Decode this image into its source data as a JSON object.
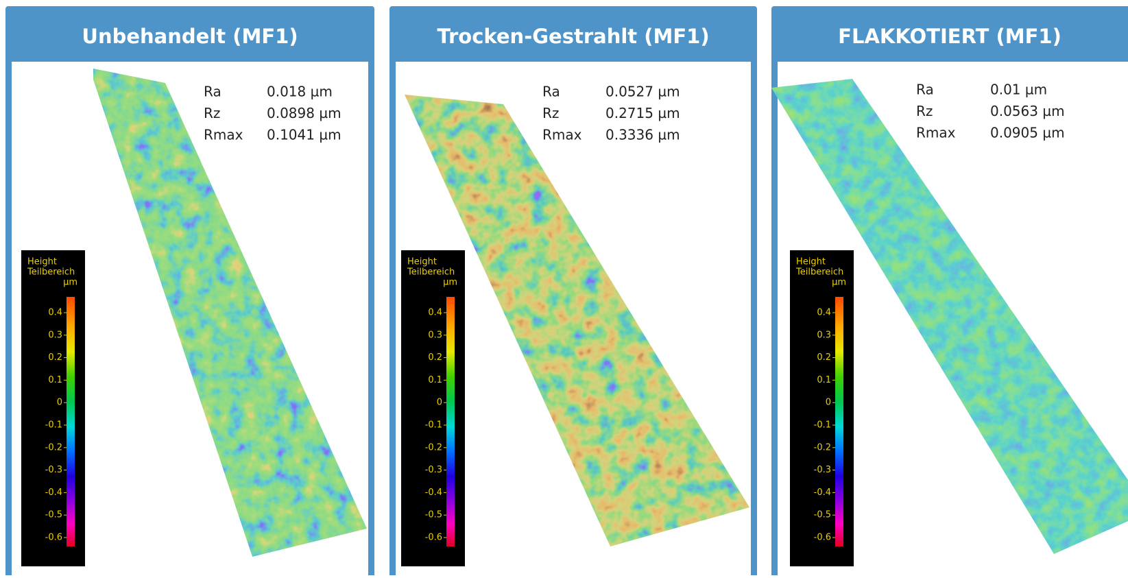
{
  "panels": [
    {
      "title": "Unbehandelt (MF1)",
      "stats": [
        {
          "label": "Ra",
          "value": "0.018 µm"
        },
        {
          "label": "Rz",
          "value": "0.0898 µm"
        },
        {
          "label": "Rmax",
          "value": "0.1041 µm"
        }
      ]
    },
    {
      "title": "Trocken-Gestrahlt (MF1)",
      "stats": [
        {
          "label": "Ra",
          "value": "0.0527 µm"
        },
        {
          "label": "Rz",
          "value": "0.2715 µm"
        },
        {
          "label": "Rmax",
          "value": "0.3336 µm"
        }
      ]
    },
    {
      "title": "FLAKKOTIERT (MF1)",
      "stats": [
        {
          "label": "Ra",
          "value": "0.01 µm"
        },
        {
          "label": "Rz",
          "value": "0.0563 µm"
        },
        {
          "label": "Rmax",
          "value": "0.0905 µm"
        }
      ]
    }
  ],
  "colorbar": {
    "title": [
      "Height",
      "Teilbereich",
      "µm"
    ],
    "ticks": [
      "0.4",
      "0.3",
      "0.2",
      "0.1",
      "0",
      "-0.1",
      "-0.2",
      "-0.3",
      "-0.4",
      "-0.5",
      "-0.6"
    ]
  }
}
